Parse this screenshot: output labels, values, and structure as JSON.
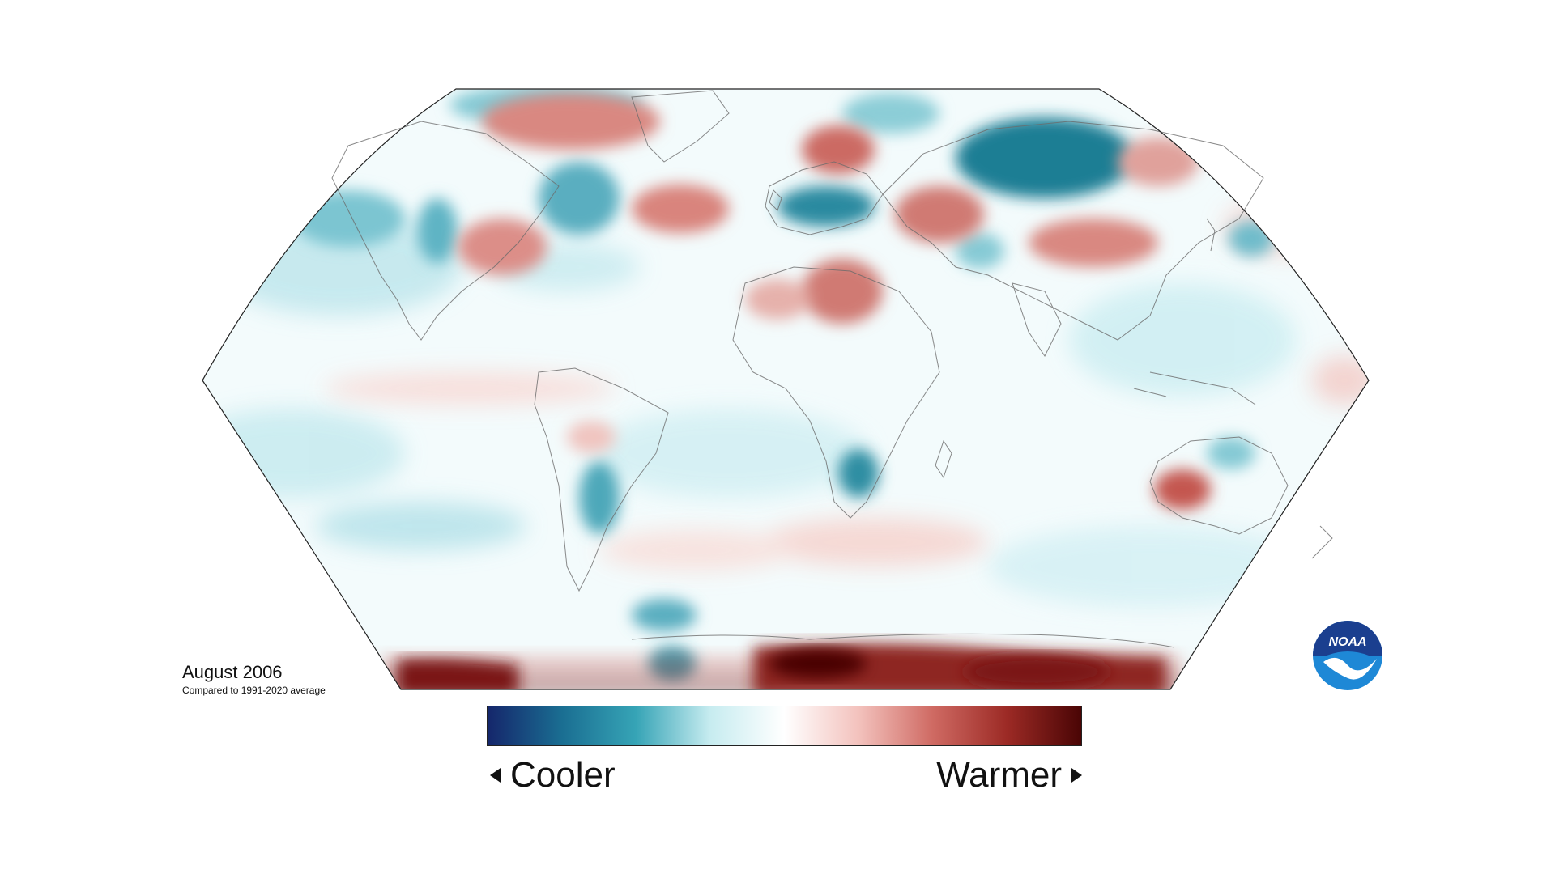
{
  "map": {
    "title": "August 2006",
    "subtitle": "Compared to 1991-2020 average",
    "projection": "Robinson",
    "variable": "temperature anomaly"
  },
  "legend": {
    "left_label": "Cooler",
    "right_label": "Warmer",
    "colors": [
      "#15266b",
      "#1a6e92",
      "#36a4b6",
      "#c7ecf0",
      "#ffffff",
      "#f3c2bd",
      "#cf6a63",
      "#9c2a25",
      "#4a0505"
    ]
  },
  "logo": {
    "text": "NOAA",
    "icon": "noaa-logo-icon",
    "colors": [
      "#1b3f8f",
      "#1e88d6",
      "#ffffff"
    ]
  }
}
